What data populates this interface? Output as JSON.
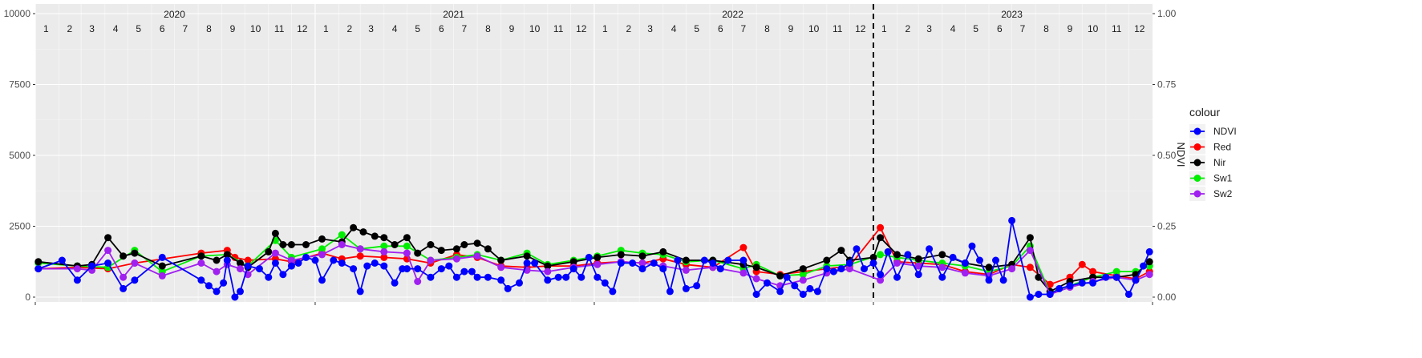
{
  "chart_data": {
    "type": "line",
    "title": "",
    "xlabel": "",
    "ylabel_left": "",
    "ylabel_right": "NDVI",
    "ylim": [
      0,
      10000
    ],
    "y2lim": [
      0,
      1
    ],
    "y_ticks": [
      "0",
      "2500",
      "5000",
      "7500",
      "10000"
    ],
    "y2_ticks": [
      "0.00",
      "0.25",
      "0.50",
      "0.75",
      "1.00"
    ],
    "x_start": "2020-01-01",
    "x_end": "2024-01-01",
    "grid": true,
    "legend_title": "colour",
    "legend_position": "right",
    "years": [
      {
        "label": "2020",
        "date": "2020-07-01"
      },
      {
        "label": "2021",
        "date": "2021-07-01"
      },
      {
        "label": "2022",
        "date": "2022-07-01"
      },
      {
        "label": "2023",
        "date": "2023-07-01"
      }
    ],
    "month_labels": [
      "1",
      "2",
      "3",
      "4",
      "5",
      "6",
      "7",
      "8",
      "9",
      "10",
      "11",
      "12"
    ],
    "vline_date": "2023-01-01",
    "series": [
      {
        "name": "NDVI",
        "color": "#0000ff",
        "axis": "right",
        "x": [
          "2020-01-05",
          "2020-02-05",
          "2020-02-25",
          "2020-03-15",
          "2020-04-05",
          "2020-04-25",
          "2020-05-10",
          "2020-06-15",
          "2020-08-05",
          "2020-08-15",
          "2020-08-25",
          "2020-09-03",
          "2020-09-08",
          "2020-09-18",
          "2020-09-25",
          "2020-10-05",
          "2020-10-20",
          "2020-11-01",
          "2020-11-10",
          "2020-11-20",
          "2020-12-01",
          "2020-12-10",
          "2020-12-20",
          "2021-01-01",
          "2021-01-10",
          "2021-01-25",
          "2021-02-05",
          "2021-02-20",
          "2021-03-01",
          "2021-03-10",
          "2021-03-20",
          "2021-04-01",
          "2021-04-15",
          "2021-04-25",
          "2021-05-01",
          "2021-05-15",
          "2021-06-01",
          "2021-06-15",
          "2021-06-25",
          "2021-07-05",
          "2021-07-15",
          "2021-07-25",
          "2021-08-01",
          "2021-08-15",
          "2021-09-01",
          "2021-09-10",
          "2021-09-25",
          "2021-10-05",
          "2021-10-15",
          "2021-11-01",
          "2021-11-15",
          "2021-11-25",
          "2021-12-05",
          "2021-12-15",
          "2021-12-25",
          "2022-01-05",
          "2022-01-15",
          "2022-01-25",
          "2022-02-05",
          "2022-02-20",
          "2022-03-05",
          "2022-03-20",
          "2022-04-01",
          "2022-04-10",
          "2022-04-20",
          "2022-05-01",
          "2022-05-15",
          "2022-05-25",
          "2022-06-05",
          "2022-06-15",
          "2022-06-25",
          "2022-07-15",
          "2022-08-01",
          "2022-08-15",
          "2022-09-01",
          "2022-09-10",
          "2022-09-20",
          "2022-10-01",
          "2022-10-10",
          "2022-10-20",
          "2022-11-01",
          "2022-11-10",
          "2022-11-20",
          "2022-12-01",
          "2022-12-10",
          "2022-12-20",
          "2023-01-01",
          "2023-01-10",
          "2023-01-20",
          "2023-02-01",
          "2023-02-15",
          "2023-03-01",
          "2023-03-15",
          "2023-04-01",
          "2023-04-15",
          "2023-05-01",
          "2023-05-10",
          "2023-05-20",
          "2023-06-01",
          "2023-06-10",
          "2023-06-20",
          "2023-07-01",
          "2023-07-25",
          "2023-08-05",
          "2023-08-20",
          "2023-09-01",
          "2023-09-15",
          "2023-10-01",
          "2023-10-15",
          "2023-11-01",
          "2023-11-15",
          "2023-12-01",
          "2023-12-10",
          "2023-12-20",
          "2023-12-28"
        ],
        "y": [
          0.1,
          0.13,
          0.06,
          0.11,
          0.12,
          0.03,
          0.06,
          0.14,
          0.06,
          0.04,
          0.02,
          0.05,
          0.13,
          0.0,
          0.02,
          0.11,
          0.1,
          0.07,
          0.12,
          0.08,
          0.11,
          0.12,
          0.14,
          0.13,
          0.06,
          0.13,
          0.12,
          0.1,
          0.02,
          0.11,
          0.12,
          0.11,
          0.05,
          0.1,
          0.1,
          0.1,
          0.07,
          0.1,
          0.11,
          0.07,
          0.09,
          0.09,
          0.07,
          0.07,
          0.06,
          0.03,
          0.05,
          0.12,
          0.12,
          0.06,
          0.07,
          0.07,
          0.1,
          0.07,
          0.14,
          0.07,
          0.05,
          0.02,
          0.12,
          0.12,
          0.1,
          0.12,
          0.1,
          0.02,
          0.13,
          0.03,
          0.04,
          0.13,
          0.12,
          0.1,
          0.13,
          0.13,
          0.01,
          0.05,
          0.02,
          0.07,
          0.04,
          0.01,
          0.03,
          0.02,
          0.1,
          0.09,
          0.1,
          0.12,
          0.17,
          0.1,
          0.12,
          0.08,
          0.16,
          0.07,
          0.15,
          0.08,
          0.17,
          0.07,
          0.14,
          0.12,
          0.18,
          0.13,
          0.06,
          0.13,
          0.06,
          0.27,
          0.0,
          0.01,
          0.01,
          0.03,
          0.04,
          0.05,
          0.05,
          0.07,
          0.07,
          0.01,
          0.06,
          0.11,
          0.16
        ]
      },
      {
        "name": "Red",
        "color": "#ff0000",
        "axis": "left",
        "x": [
          "2020-01-05",
          "2020-02-25",
          "2020-04-05",
          "2020-05-10",
          "2020-08-05",
          "2020-09-08",
          "2020-09-18",
          "2020-10-05",
          "2020-11-10",
          "2020-12-01",
          "2021-01-10",
          "2021-02-05",
          "2021-03-01",
          "2021-04-01",
          "2021-05-01",
          "2021-06-01",
          "2021-07-05",
          "2021-08-01",
          "2021-09-01",
          "2021-10-05",
          "2021-11-01",
          "2021-12-05",
          "2022-01-05",
          "2022-02-05",
          "2022-03-05",
          "2022-04-01",
          "2022-05-01",
          "2022-06-05",
          "2022-07-15",
          "2022-08-01",
          "2022-09-01",
          "2022-10-01",
          "2022-11-01",
          "2022-12-01",
          "2023-01-10",
          "2023-02-01",
          "2023-03-01",
          "2023-04-01",
          "2023-05-01",
          "2023-06-01",
          "2023-07-01",
          "2023-07-25",
          "2023-08-20",
          "2023-09-15",
          "2023-10-01",
          "2023-10-15",
          "2023-11-15",
          "2023-12-10",
          "2023-12-28"
        ],
        "y": [
          1000,
          1050,
          1000,
          1200,
          1550,
          1650,
          1400,
          1300,
          1350,
          1250,
          1550,
          1350,
          1450,
          1400,
          1350,
          1200,
          1500,
          1400,
          1100,
          1050,
          1100,
          1100,
          1200,
          1250,
          1200,
          1350,
          1150,
          1050,
          1750,
          900,
          800,
          900,
          1000,
          1100,
          2450,
          1250,
          1200,
          1150,
          900,
          800,
          1150,
          1050,
          450,
          700,
          1150,
          900,
          750,
          650,
          900
        ]
      },
      {
        "name": "Nir",
        "color": "#000000",
        "axis": "left",
        "x": [
          "2020-01-05",
          "2020-02-25",
          "2020-03-15",
          "2020-04-05",
          "2020-04-25",
          "2020-05-10",
          "2020-06-15",
          "2020-08-05",
          "2020-08-25",
          "2020-09-08",
          "2020-09-25",
          "2020-10-05",
          "2020-11-01",
          "2020-11-10",
          "2020-11-20",
          "2020-12-01",
          "2020-12-20",
          "2021-01-10",
          "2021-02-05",
          "2021-02-20",
          "2021-03-05",
          "2021-03-20",
          "2021-04-01",
          "2021-04-15",
          "2021-05-01",
          "2021-05-15",
          "2021-06-01",
          "2021-06-15",
          "2021-07-05",
          "2021-07-15",
          "2021-08-01",
          "2021-08-15",
          "2021-09-01",
          "2021-10-05",
          "2021-11-01",
          "2021-12-05",
          "2022-01-05",
          "2022-02-05",
          "2022-03-05",
          "2022-04-01",
          "2022-05-01",
          "2022-06-05",
          "2022-07-15",
          "2022-08-01",
          "2022-09-01",
          "2022-10-01",
          "2022-11-01",
          "2022-11-20",
          "2022-12-01",
          "2023-01-01",
          "2023-01-10",
          "2023-02-01",
          "2023-03-01",
          "2023-04-01",
          "2023-05-01",
          "2023-06-01",
          "2023-07-01",
          "2023-07-25",
          "2023-08-05",
          "2023-08-20",
          "2023-09-15",
          "2023-10-15",
          "2023-11-15",
          "2023-12-10",
          "2023-12-28"
        ],
        "y": [
          1250,
          1100,
          1150,
          2100,
          1450,
          1550,
          1100,
          1450,
          1300,
          1500,
          1200,
          1050,
          1600,
          2250,
          1850,
          1850,
          1850,
          2050,
          1950,
          2450,
          2300,
          2150,
          2100,
          1850,
          2100,
          1550,
          1850,
          1650,
          1700,
          1850,
          1900,
          1700,
          1300,
          1450,
          1100,
          1250,
          1400,
          1500,
          1450,
          1600,
          1300,
          1300,
          1150,
          1050,
          750,
          1000,
          1300,
          1650,
          1300,
          1400,
          2100,
          1500,
          1350,
          1500,
          1200,
          1050,
          1150,
          2100,
          700,
          200,
          550,
          700,
          700,
          800,
          1250
        ]
      },
      {
        "name": "Sw1",
        "color": "#00ee00",
        "axis": "left",
        "x": [
          "2020-01-05",
          "2020-02-25",
          "2020-04-05",
          "2020-05-10",
          "2020-06-15",
          "2020-08-05",
          "2020-09-08",
          "2020-10-05",
          "2020-11-10",
          "2020-12-01",
          "2021-01-10",
          "2021-02-05",
          "2021-03-01",
          "2021-04-01",
          "2021-05-01",
          "2021-06-01",
          "2021-07-05",
          "2021-08-01",
          "2021-09-01",
          "2021-10-05",
          "2021-11-01",
          "2021-12-05",
          "2022-01-05",
          "2022-02-05",
          "2022-03-05",
          "2022-04-01",
          "2022-05-01",
          "2022-06-05",
          "2022-07-15",
          "2022-08-01",
          "2022-09-01",
          "2022-10-01",
          "2022-11-01",
          "2022-12-01",
          "2023-01-10",
          "2023-02-01",
          "2023-03-01",
          "2023-04-01",
          "2023-05-01",
          "2023-06-01",
          "2023-07-01",
          "2023-07-25",
          "2023-08-20",
          "2023-09-15",
          "2023-10-15",
          "2023-11-15",
          "2023-12-10",
          "2023-12-28"
        ],
        "y": [
          1200,
          1100,
          1050,
          1650,
          900,
          1450,
          1500,
          1100,
          2000,
          1400,
          1700,
          2200,
          1700,
          1800,
          1800,
          1300,
          1400,
          1500,
          1300,
          1550,
          1150,
          1300,
          1450,
          1650,
          1550,
          1500,
          1250,
          1300,
          1000,
          1150,
          750,
          800,
          1100,
          1150,
          1500,
          1400,
          1300,
          1200,
          1100,
          900,
          1100,
          1800,
          150,
          400,
          700,
          900,
          900,
          1100
        ]
      },
      {
        "name": "Sw2",
        "color": "#a020f0",
        "axis": "left",
        "x": [
          "2020-01-05",
          "2020-02-25",
          "2020-03-15",
          "2020-04-05",
          "2020-04-25",
          "2020-05-10",
          "2020-06-15",
          "2020-08-05",
          "2020-08-25",
          "2020-09-08",
          "2020-09-25",
          "2020-10-05",
          "2020-11-10",
          "2020-12-01",
          "2021-01-10",
          "2021-02-05",
          "2021-03-01",
          "2021-04-01",
          "2021-05-01",
          "2021-05-15",
          "2021-06-01",
          "2021-07-05",
          "2021-08-01",
          "2021-09-01",
          "2021-10-05",
          "2021-11-01",
          "2021-12-05",
          "2022-01-05",
          "2022-02-05",
          "2022-03-05",
          "2022-04-01",
          "2022-05-01",
          "2022-06-05",
          "2022-07-15",
          "2022-08-01",
          "2022-09-01",
          "2022-10-01",
          "2022-11-01",
          "2022-12-01",
          "2023-01-10",
          "2023-02-01",
          "2023-03-01",
          "2023-04-01",
          "2023-05-01",
          "2023-06-01",
          "2023-07-01",
          "2023-07-25",
          "2023-08-20",
          "2023-09-15",
          "2023-10-15",
          "2023-11-15",
          "2023-12-10",
          "2023-12-28"
        ],
        "y": [
          1000,
          1000,
          950,
          1650,
          700,
          1200,
          750,
          1200,
          900,
          1150,
          1000,
          800,
          1550,
          1300,
          1500,
          1850,
          1700,
          1600,
          1550,
          550,
          1300,
          1350,
          1450,
          1050,
          950,
          900,
          1050,
          1150,
          1250,
          1200,
          1100,
          950,
          1050,
          850,
          650,
          400,
          600,
          850,
          1000,
          600,
          1200,
          1100,
          1050,
          850,
          750,
          1000,
          1650,
          100,
          350,
          550,
          700,
          600,
          800
        ]
      }
    ]
  }
}
